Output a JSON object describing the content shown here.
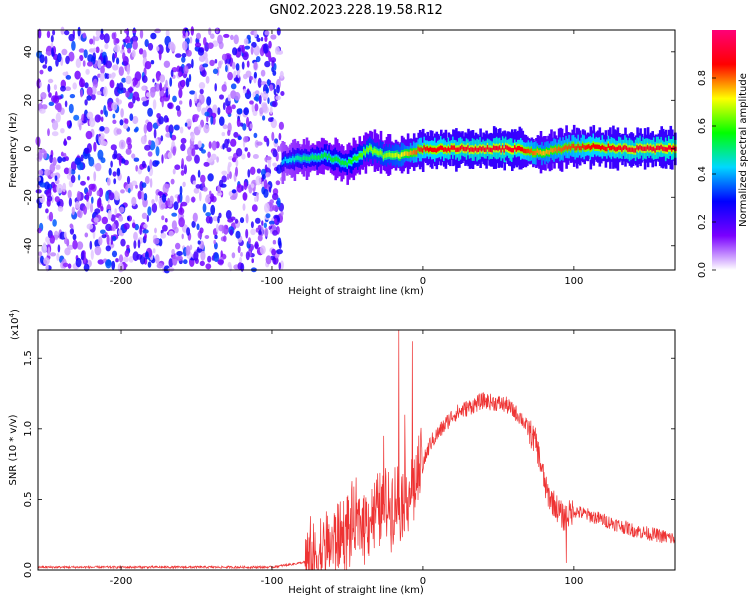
{
  "title": "GN02.2023.228.19.58.R12",
  "chart_data": [
    {
      "type": "heatmap",
      "xlabel": "Height of straight line (km)",
      "ylabel": "Frequency (Hz)",
      "xlim": [
        -255,
        167
      ],
      "ylim": [
        -50,
        49
      ],
      "xticks": [
        -200,
        -100,
        0,
        100
      ],
      "yticks": [
        -40,
        -20,
        0,
        20,
        40
      ],
      "colorbar": {
        "label": "Normalized spectral amplitude",
        "range": [
          0,
          1
        ],
        "ticks": [
          "0.0",
          "0.2",
          "0.4",
          "0.6",
          "0.8"
        ],
        "colormap": [
          "#ffffff",
          "#7a00ff",
          "#0000ff",
          "#00d8ff",
          "#00ff00",
          "#ffff00",
          "#ff0000",
          "#ff0077"
        ]
      },
      "noise_region_x": [
        -255,
        -93
      ],
      "ridge": [
        {
          "x": -93,
          "f": -5,
          "amp": 0.4
        },
        {
          "x": -80,
          "f": -4,
          "amp": 0.5
        },
        {
          "x": -65,
          "f": -3,
          "amp": 0.55
        },
        {
          "x": -50,
          "f": -6,
          "amp": 0.55
        },
        {
          "x": -35,
          "f": 0,
          "amp": 0.65
        },
        {
          "x": -25,
          "f": -3,
          "amp": 0.65
        },
        {
          "x": -15,
          "f": -3,
          "amp": 0.7
        },
        {
          "x": 0,
          "f": 0,
          "amp": 0.85
        },
        {
          "x": 30,
          "f": 0,
          "amp": 0.9
        },
        {
          "x": 60,
          "f": 0,
          "amp": 0.9
        },
        {
          "x": 80,
          "f": -2,
          "amp": 0.75
        },
        {
          "x": 90,
          "f": 0,
          "amp": 0.8
        },
        {
          "x": 110,
          "f": 1,
          "amp": 0.85
        },
        {
          "x": 140,
          "f": 0,
          "amp": 0.9
        },
        {
          "x": 167,
          "f": 0,
          "amp": 0.9
        }
      ]
    },
    {
      "type": "line",
      "xlabel": "Height of straight line (km)",
      "ylabel": "SNR (10 * v/v)",
      "exponent_label": "(x10",
      "exponent_power": "4",
      "exponent_close": ")",
      "xlim": [
        -255,
        167
      ],
      "ylim": [
        0,
        1.7
      ],
      "xticks": [
        -200,
        -100,
        0,
        100
      ],
      "yticks": [
        "0.0",
        "0.5",
        "1.0",
        "1.5"
      ],
      "color": "#ee3333",
      "envelope": [
        {
          "x": -255,
          "y": 0.02
        },
        {
          "x": -100,
          "y": 0.02
        },
        {
          "x": -75,
          "y": 0.06
        },
        {
          "x": -65,
          "y": 0.15
        },
        {
          "x": -50,
          "y": 0.28
        },
        {
          "x": -35,
          "y": 0.38
        },
        {
          "x": -25,
          "y": 0.45
        },
        {
          "x": -15,
          "y": 0.5
        },
        {
          "x": -5,
          "y": 0.6
        },
        {
          "x": 5,
          "y": 0.9
        },
        {
          "x": 20,
          "y": 1.1
        },
        {
          "x": 40,
          "y": 1.2
        },
        {
          "x": 55,
          "y": 1.17
        },
        {
          "x": 65,
          "y": 1.08
        },
        {
          "x": 75,
          "y": 0.9
        },
        {
          "x": 82,
          "y": 0.55
        },
        {
          "x": 93,
          "y": 0.37
        },
        {
          "x": 100,
          "y": 0.42
        },
        {
          "x": 115,
          "y": 0.37
        },
        {
          "x": 140,
          "y": 0.28
        },
        {
          "x": 167,
          "y": 0.22
        }
      ],
      "spikes": [
        {
          "x": -26,
          "y": 0.95
        },
        {
          "x": -16,
          "y": 1.7
        },
        {
          "x": -12,
          "y": 1.1
        },
        {
          "x": -7,
          "y": 1.62
        },
        {
          "x": 95,
          "y": 0.05
        }
      ]
    }
  ]
}
